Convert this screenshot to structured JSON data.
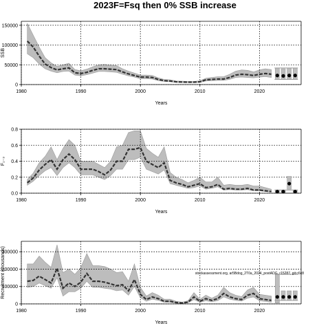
{
  "title": "2023F=Fsq then 0% SSB increase",
  "colors": {
    "band": "#bdbdbd",
    "line": "#333333",
    "grid": "#000000"
  },
  "chart_data": [
    {
      "type": "line",
      "ylabel": "SSB",
      "xlabel": "Years",
      "xlim": [
        1980,
        2027
      ],
      "ylim": [
        0,
        160000
      ],
      "xticks": [
        1980,
        1990,
        2000,
        2010,
        2020
      ],
      "yticks": [
        0,
        50000,
        100000,
        150000
      ],
      "grid": true,
      "x": [
        1981,
        1982,
        1983,
        1984,
        1985,
        1986,
        1987,
        1988,
        1989,
        1990,
        1991,
        1992,
        1993,
        1994,
        1995,
        1996,
        1997,
        1998,
        1999,
        2000,
        2001,
        2002,
        2003,
        2004,
        2005,
        2006,
        2007,
        2008,
        2009,
        2010,
        2011,
        2012,
        2013,
        2014,
        2015,
        2016,
        2017,
        2018,
        2019,
        2020,
        2021,
        2022
      ],
      "y": [
        110000,
        95000,
        72000,
        52000,
        43000,
        37000,
        40000,
        42000,
        30000,
        28000,
        31000,
        36000,
        40000,
        40000,
        39000,
        38000,
        32000,
        27000,
        23000,
        19000,
        19000,
        18000,
        13000,
        10000,
        9000,
        7000,
        6500,
        6000,
        6000,
        7000,
        12000,
        13000,
        14000,
        14000,
        18000,
        24000,
        26000,
        25000,
        23000,
        26000,
        28000,
        26000
      ],
      "lower": [
        78000,
        68000,
        52000,
        40000,
        34000,
        30000,
        33000,
        34000,
        24000,
        22000,
        25000,
        29000,
        33000,
        33000,
        32000,
        31000,
        26000,
        22000,
        19000,
        15000,
        15000,
        14000,
        10000,
        8000,
        7000,
        5500,
        5000,
        4800,
        4800,
        5500,
        9000,
        10000,
        10500,
        10500,
        13000,
        18000,
        19000,
        18000,
        17000,
        19000,
        20000,
        18000
      ],
      "upper": [
        155000,
        125000,
        95000,
        68000,
        55000,
        46000,
        50000,
        54000,
        38000,
        35000,
        39000,
        45000,
        50000,
        51000,
        49000,
        48000,
        40000,
        34000,
        29000,
        24000,
        24000,
        23000,
        17000,
        13000,
        12000,
        9000,
        8500,
        8000,
        8000,
        9500,
        16000,
        18000,
        20000,
        20000,
        26000,
        34000,
        37000,
        36000,
        32000,
        37000,
        40000,
        38000
      ],
      "projection_x": [
        2023,
        2024,
        2025,
        2026
      ],
      "projection_y": [
        23000,
        22000,
        23000,
        23000
      ],
      "projection_band": [
        [
          15000,
          42000
        ],
        [
          13000,
          40000
        ],
        [
          13000,
          42000
        ],
        [
          13000,
          42000
        ]
      ]
    },
    {
      "type": "line",
      "ylabel": "F₁₋₃",
      "xlabel": "Years",
      "xlim": [
        1980,
        2027
      ],
      "ylim": [
        0,
        0.8
      ],
      "xticks": [
        1980,
        1990,
        2000,
        2010,
        2020
      ],
      "yticks": [
        0.0,
        0.2,
        0.4,
        0.6,
        0.8
      ],
      "grid": true,
      "x": [
        1981,
        1982,
        1983,
        1984,
        1985,
        1986,
        1987,
        1988,
        1989,
        1990,
        1991,
        1992,
        1993,
        1994,
        1995,
        1996,
        1997,
        1998,
        1999,
        2000,
        2001,
        2002,
        2003,
        2004,
        2005,
        2006,
        2007,
        2008,
        2009,
        2010,
        2011,
        2012,
        2013,
        2014,
        2015,
        2016,
        2017,
        2018,
        2019,
        2020,
        2021,
        2022
      ],
      "y": [
        0.13,
        0.19,
        0.29,
        0.36,
        0.42,
        0.3,
        0.42,
        0.49,
        0.42,
        0.3,
        0.3,
        0.3,
        0.27,
        0.23,
        0.29,
        0.4,
        0.4,
        0.55,
        0.55,
        0.57,
        0.4,
        0.36,
        0.32,
        0.38,
        0.16,
        0.13,
        0.11,
        0.08,
        0.1,
        0.12,
        0.07,
        0.08,
        0.11,
        0.05,
        0.06,
        0.05,
        0.05,
        0.06,
        0.04,
        0.04,
        0.03,
        0.02
      ],
      "lower": [
        0.1,
        0.15,
        0.22,
        0.28,
        0.32,
        0.22,
        0.32,
        0.38,
        0.32,
        0.23,
        0.23,
        0.23,
        0.2,
        0.17,
        0.22,
        0.3,
        0.3,
        0.42,
        0.42,
        0.45,
        0.3,
        0.27,
        0.24,
        0.29,
        0.12,
        0.1,
        0.08,
        0.06,
        0.07,
        0.09,
        0.05,
        0.06,
        0.08,
        0.04,
        0.045,
        0.04,
        0.04,
        0.045,
        0.03,
        0.03,
        0.02,
        0.015
      ],
      "upper": [
        0.17,
        0.25,
        0.38,
        0.46,
        0.58,
        0.42,
        0.56,
        0.67,
        0.6,
        0.4,
        0.4,
        0.4,
        0.36,
        0.32,
        0.4,
        0.58,
        0.6,
        0.76,
        0.78,
        0.78,
        0.56,
        0.5,
        0.45,
        0.58,
        0.26,
        0.2,
        0.17,
        0.13,
        0.16,
        0.2,
        0.14,
        0.14,
        0.2,
        0.1,
        0.11,
        0.1,
        0.1,
        0.11,
        0.09,
        0.09,
        0.07,
        0.05
      ],
      "projection_x": [
        2023,
        2024,
        2025,
        2026
      ],
      "projection_y": [
        0.02,
        0.02,
        0.12,
        0.02
      ],
      "projection_band": [
        [
          0.0,
          0.04
        ],
        [
          0.0,
          0.04
        ],
        [
          0.05,
          0.21
        ],
        [
          0.0,
          0.04
        ]
      ]
    },
    {
      "type": "line",
      "ylabel": "Recruitment (thousands)",
      "xlabel": "Years",
      "xlim": [
        1980,
        2027
      ],
      "ylim": [
        0,
        360000
      ],
      "xticks": [
        1980,
        1990,
        2000,
        2010,
        2020
      ],
      "yticks": [
        0,
        100000,
        200000,
        300000
      ],
      "grid": true,
      "annotation": "stockassessment.org, ar5Bdog_2T0a_2024_postADG, r15287, git:c6c8",
      "x": [
        1981,
        1982,
        1983,
        1984,
        1985,
        1986,
        1987,
        1988,
        1989,
        1990,
        1991,
        1992,
        1993,
        1994,
        1995,
        1996,
        1997,
        1998,
        1999,
        2000,
        2001,
        2002,
        2003,
        2004,
        2005,
        2006,
        2007,
        2008,
        2009,
        2010,
        2011,
        2012,
        2013,
        2014,
        2015,
        2016,
        2017,
        2018,
        2019,
        2020,
        2021,
        2022
      ],
      "y": [
        130000,
        135000,
        160000,
        140000,
        120000,
        205000,
        90000,
        120000,
        100000,
        125000,
        175000,
        130000,
        130000,
        125000,
        115000,
        105000,
        110000,
        75000,
        140000,
        55000,
        25000,
        40000,
        30000,
        15000,
        15000,
        8000,
        5000,
        10000,
        40000,
        15000,
        30000,
        20000,
        30000,
        60000,
        40000,
        30000,
        25000,
        50000,
        60000,
        30000,
        25000,
        20000
      ],
      "lower": [
        95000,
        100000,
        120000,
        105000,
        90000,
        150000,
        45000,
        70000,
        70000,
        90000,
        130000,
        95000,
        95000,
        90000,
        85000,
        75000,
        80000,
        50000,
        100000,
        35000,
        15000,
        27000,
        20000,
        9000,
        9000,
        4000,
        2500,
        6000,
        25000,
        9000,
        18000,
        12000,
        18000,
        40000,
        27000,
        20000,
        16000,
        33000,
        40000,
        18000,
        14000,
        10000
      ],
      "upper": [
        230000,
        230000,
        275000,
        240000,
        210000,
        340000,
        180000,
        200000,
        170000,
        210000,
        290000,
        220000,
        220000,
        215000,
        200000,
        180000,
        185000,
        130000,
        230000,
        95000,
        45000,
        65000,
        50000,
        27000,
        27000,
        15000,
        10000,
        18000,
        65000,
        27000,
        50000,
        33000,
        50000,
        95000,
        65000,
        50000,
        42000,
        80000,
        95000,
        55000,
        50000,
        45000
      ],
      "projection_x": [
        2023,
        2024,
        2025,
        2026
      ],
      "projection_y": [
        40000,
        40000,
        40000,
        40000
      ],
      "projection_band": [
        [
          5000,
          170000
        ],
        [
          20000,
          75000
        ],
        [
          20000,
          75000
        ],
        [
          20000,
          75000
        ]
      ]
    }
  ]
}
